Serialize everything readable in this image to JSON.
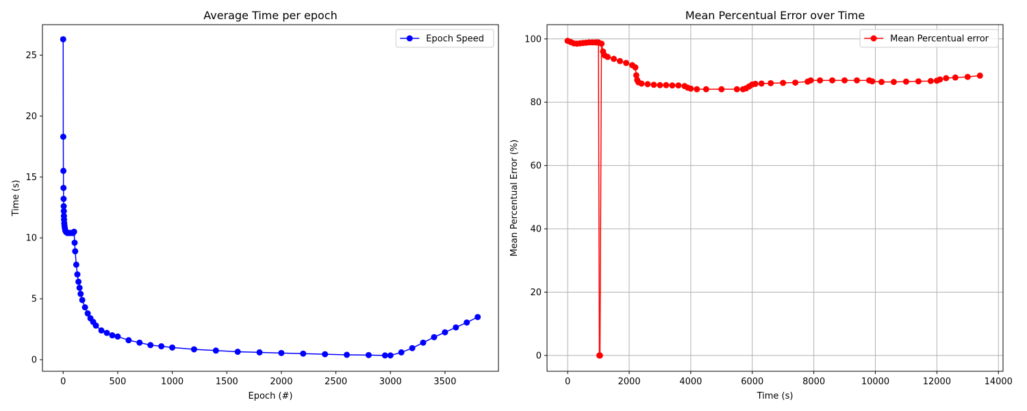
{
  "chart_data": [
    {
      "type": "line",
      "title": "Average Time per epoch",
      "xlabel": "Epoch (#)",
      "ylabel": "Time (s)",
      "xlim": [
        -190,
        3990
      ],
      "ylim": [
        -0.95,
        27.5
      ],
      "xticks": [
        0,
        500,
        1000,
        1500,
        2000,
        2500,
        3000,
        3500
      ],
      "yticks": [
        0,
        5,
        10,
        15,
        20,
        25
      ],
      "grid": false,
      "legend_position": "top-right",
      "series": [
        {
          "name": "Epoch Speed",
          "color": "#0000ff",
          "marker": "circle",
          "x": [
            0,
            1,
            2,
            3,
            4,
            5,
            6,
            7,
            8,
            10,
            12,
            15,
            20,
            25,
            30,
            40,
            50,
            60,
            70,
            80,
            90,
            100,
            105,
            110,
            120,
            130,
            140,
            150,
            160,
            175,
            200,
            225,
            250,
            275,
            300,
            350,
            400,
            450,
            500,
            600,
            700,
            800,
            900,
            1000,
            1200,
            1400,
            1600,
            1800,
            2000,
            2200,
            2400,
            2600,
            2800,
            2950,
            3000,
            3100,
            3200,
            3300,
            3400,
            3500,
            3600,
            3700,
            3800
          ],
          "y": [
            26.3,
            18.3,
            15.5,
            14.1,
            13.2,
            12.6,
            12.2,
            11.8,
            11.5,
            11.2,
            11.0,
            10.8,
            10.6,
            10.5,
            10.45,
            10.4,
            10.4,
            10.4,
            10.4,
            10.4,
            10.4,
            10.5,
            9.6,
            8.9,
            7.8,
            7.0,
            6.4,
            5.9,
            5.4,
            4.9,
            4.3,
            3.8,
            3.4,
            3.1,
            2.8,
            2.4,
            2.2,
            2.0,
            1.9,
            1.6,
            1.4,
            1.2,
            1.1,
            1.0,
            0.85,
            0.75,
            0.65,
            0.6,
            0.55,
            0.5,
            0.45,
            0.4,
            0.38,
            0.35,
            0.35,
            0.6,
            0.95,
            1.4,
            1.85,
            2.25,
            2.65,
            3.05,
            3.5
          ]
        }
      ]
    },
    {
      "type": "line",
      "title": "Mean Percentual Error over Time",
      "xlabel": "Time (s)",
      "ylabel": "Mean Percentual Error (%)",
      "xlim": [
        -670,
        14150
      ],
      "ylim": [
        -5,
        104.5
      ],
      "xticks": [
        0,
        2000,
        4000,
        6000,
        8000,
        10000,
        12000,
        14000
      ],
      "yticks": [
        0,
        20,
        40,
        60,
        80,
        100
      ],
      "grid": true,
      "legend_position": "top-right",
      "series": [
        {
          "name": "Mean Percentual error",
          "color": "#ff0000",
          "marker": "circle",
          "x": [
            0,
            100,
            200,
            300,
            400,
            500,
            600,
            700,
            800,
            900,
            950,
            1000,
            1030,
            1040,
            1050,
            1100,
            1150,
            1200,
            1300,
            1500,
            1700,
            1900,
            2100,
            2200,
            2230,
            2260,
            2300,
            2400,
            2600,
            2800,
            3000,
            3200,
            3400,
            3600,
            3800,
            3900,
            4000,
            4200,
            4500,
            5000,
            5500,
            5700,
            5800,
            5900,
            6000,
            6100,
            6300,
            6600,
            7000,
            7400,
            7800,
            7900,
            8200,
            8600,
            9000,
            9400,
            9800,
            9900,
            10200,
            10600,
            11000,
            11400,
            11800,
            12000,
            12100,
            12300,
            12600,
            13000,
            13400
          ],
          "y": [
            99.4,
            99.0,
            98.6,
            98.5,
            98.6,
            98.7,
            98.8,
            98.9,
            98.9,
            98.9,
            98.9,
            98.9,
            0,
            0,
            0,
            98.5,
            96.0,
            94.8,
            94.3,
            93.7,
            93.0,
            92.4,
            91.7,
            91.0,
            88.5,
            87.0,
            86.3,
            85.9,
            85.7,
            85.5,
            85.4,
            85.4,
            85.3,
            85.3,
            85.1,
            84.6,
            84.3,
            84.1,
            84.1,
            84.1,
            84.1,
            84.1,
            84.4,
            85.0,
            85.6,
            85.8,
            85.9,
            86.0,
            86.1,
            86.2,
            86.5,
            86.9,
            86.9,
            86.9,
            86.9,
            86.9,
            86.9,
            86.6,
            86.4,
            86.4,
            86.5,
            86.6,
            86.7,
            86.8,
            87.2,
            87.6,
            87.8,
            88.0,
            88.4
          ]
        }
      ]
    }
  ]
}
